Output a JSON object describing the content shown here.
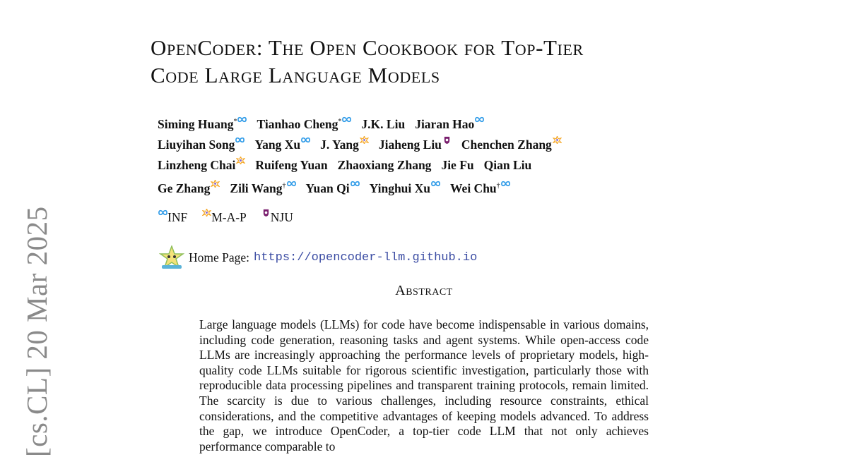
{
  "arxiv_stamp": "[cs.CL]  20 Mar 2025",
  "title": {
    "line1": "OpenCoder: The Open Cookbook for Top-Tier",
    "line2": "Code Large Language Models"
  },
  "authors": [
    [
      {
        "name": "Siming Huang",
        "mark": "*",
        "aff": "inf"
      },
      {
        "name": "Tianhao Cheng",
        "mark": "*",
        "aff": "inf"
      },
      {
        "name": "J.K. Liu",
        "mark": "",
        "aff": ""
      },
      {
        "name": "Jiaran Hao",
        "mark": "",
        "aff": "inf"
      }
    ],
    [
      {
        "name": "Liuyihan Song",
        "mark": "",
        "aff": "inf"
      },
      {
        "name": "Yang Xu",
        "mark": "",
        "aff": "inf"
      },
      {
        "name": "J. Yang",
        "mark": "",
        "aff": "map"
      },
      {
        "name": "Jiaheng Liu",
        "mark": "",
        "aff": "nju"
      },
      {
        "name": "Chenchen Zhang",
        "mark": "",
        "aff": "map"
      }
    ],
    [
      {
        "name": "Linzheng Chai",
        "mark": "",
        "aff": "map"
      },
      {
        "name": "Ruifeng Yuan",
        "mark": "",
        "aff": ""
      },
      {
        "name": "Zhaoxiang Zhang",
        "mark": "",
        "aff": ""
      },
      {
        "name": "Jie Fu",
        "mark": "",
        "aff": ""
      },
      {
        "name": "Qian Liu",
        "mark": "",
        "aff": ""
      }
    ],
    [
      {
        "name": "Ge Zhang",
        "mark": "",
        "aff": "map"
      },
      {
        "name": "Zili Wang",
        "mark": "†",
        "aff": "inf"
      },
      {
        "name": "Yuan Qi",
        "mark": "",
        "aff": "inf"
      },
      {
        "name": "Yinghui Xu",
        "mark": "",
        "aff": "inf"
      },
      {
        "name": "Wei Chu",
        "mark": "†",
        "aff": "inf"
      }
    ]
  ],
  "affiliations": [
    {
      "key": "inf",
      "label": "INF"
    },
    {
      "key": "map",
      "label": "M-A-P"
    },
    {
      "key": "nju",
      "label": "NJU"
    }
  ],
  "home_page": {
    "label": "Home Page:",
    "url": "https://opencoder-llm.github.io"
  },
  "abstract": {
    "heading": "Abstract",
    "text": "Large language models (LLMs) for code have become indispensable in various domains, including code generation, reasoning tasks and agent systems. While open-access code LLMs are increasingly approaching the performance levels of proprietary models, high-quality code LLMs suitable for rigorous scientific investigation, particularly those with reproducible data processing pipelines and transparent training protocols, remain limited. The scarcity is due to various challenges, including resource constraints, ethical considerations, and the competitive advantages of keeping models advanced. To address the gap, we introduce OpenCoder, a top-tier code LLM that not only achieves performance comparable to"
  },
  "colors": {
    "inf": "#2f9be8",
    "map_a": "#f5a623",
    "map_b": "#7b5cd6",
    "nju": "#7a1f6e",
    "link": "#3b4ca3",
    "stamp": "#8a8a8a"
  }
}
